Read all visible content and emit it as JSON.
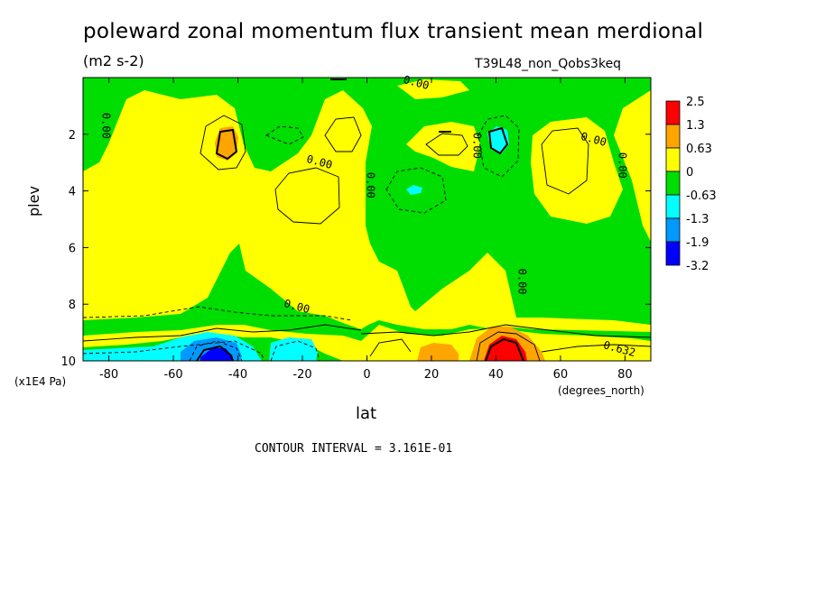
{
  "header": {
    "title": "poleward zonal momentum flux transient mean merdional",
    "units": "(m2 s-2)",
    "run": "T39L48_non_Qobs3keq"
  },
  "footer": {
    "contour_interval": "CONTOUR INTERVAL = 3.161E-01"
  },
  "chart_data": {
    "type": "contour",
    "xlabel": "lat",
    "xunits": "(degrees_north)",
    "ylabel": "plev",
    "yunits": "(x1E4 Pa)",
    "xlim": [
      -88,
      88
    ],
    "ylim": [
      10,
      0
    ],
    "xticks": [
      -80,
      -60,
      -40,
      -20,
      0,
      20,
      40,
      60,
      80
    ],
    "yticks": [
      2,
      4,
      6,
      8,
      10
    ],
    "contour_interval": 0.3161,
    "colorbar": {
      "levels": [
        "2.5",
        "1.3",
        "0.63",
        "0",
        "-0.63",
        "-1.3",
        "-1.9",
        "-3.2"
      ],
      "colors": [
        "#ff0000",
        "#ffa500",
        "#ffff00",
        "#00dd00",
        "#00ffff",
        "#0099ff",
        "#0000ff"
      ]
    },
    "contour_labels": [
      {
        "text": "0.00",
        "x": 15,
        "y": 0.3
      },
      {
        "text": "0.00",
        "x": -82,
        "y": 1.7
      },
      {
        "text": "0.00",
        "x": -15,
        "y": 3.1
      },
      {
        "text": "0.00",
        "x": 0,
        "y": 3.8
      },
      {
        "text": "0.00",
        "x": 33,
        "y": 2.4
      },
      {
        "text": "0.00",
        "x": 70,
        "y": 2.3
      },
      {
        "text": "0.00",
        "x": 78,
        "y": 3.1
      },
      {
        "text": "0.00",
        "x": 47,
        "y": 7.2
      },
      {
        "text": "0.00",
        "x": -22,
        "y": 8.2
      },
      {
        "text": "0.632",
        "x": 78,
        "y": 9.7
      }
    ],
    "extrema": [
      {
        "sign": "positive",
        "lat": -44,
        "plev": 2.4,
        "max_level": "0.63"
      },
      {
        "sign": "positive",
        "lat": 43,
        "plev": 9.6,
        "max_level": "2.5"
      },
      {
        "sign": "positive",
        "lat": 22,
        "plev": 9.8,
        "max_level": "0.63"
      },
      {
        "sign": "negative",
        "lat": -46,
        "plev": 9.8,
        "min_level": "-1.9"
      },
      {
        "sign": "negative",
        "lat": -22,
        "plev": 9.8,
        "min_level": "-0.63"
      },
      {
        "sign": "negative",
        "lat": 40,
        "plev": 2.4,
        "min_level": "-0.63"
      },
      {
        "sign": "negative",
        "lat": 15,
        "plev": 4.0,
        "min_level": "-0.63"
      }
    ]
  }
}
